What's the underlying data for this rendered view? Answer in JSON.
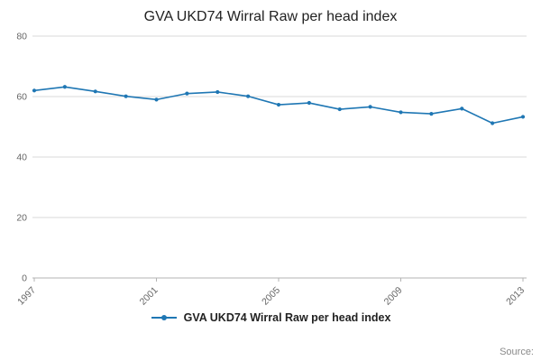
{
  "title": "GVA UKD74 Wirral Raw per head index",
  "legend": {
    "label": "GVA UKD74 Wirral Raw per head index"
  },
  "source_label": "Source:",
  "colors": {
    "line": "#1f77b4",
    "grid": "#d9d9d9",
    "axis": "#b3b3b3",
    "tick_text": "#666666",
    "title_text": "#222222"
  },
  "chart_data": {
    "type": "line",
    "title": "GVA UKD74 Wirral Raw per head index",
    "x": [
      1997,
      1998,
      1999,
      2000,
      2001,
      2002,
      2003,
      2004,
      2005,
      2006,
      2007,
      2008,
      2009,
      2010,
      2011,
      2012,
      2013
    ],
    "series": [
      {
        "name": "GVA UKD74 Wirral Raw per head index",
        "values": [
          62.0,
          63.2,
          61.7,
          60.1,
          59.0,
          61.0,
          61.5,
          60.1,
          57.3,
          57.9,
          55.8,
          56.6,
          54.8,
          54.3,
          56.0,
          51.2,
          53.3
        ]
      }
    ],
    "xlabel": "",
    "ylabel": "",
    "ylim": [
      0,
      80
    ],
    "yticks": [
      0,
      20,
      40,
      60,
      80
    ],
    "xticks": [
      1997,
      2001,
      2005,
      2009,
      2013
    ],
    "grid": true,
    "legend_position": "bottom"
  }
}
